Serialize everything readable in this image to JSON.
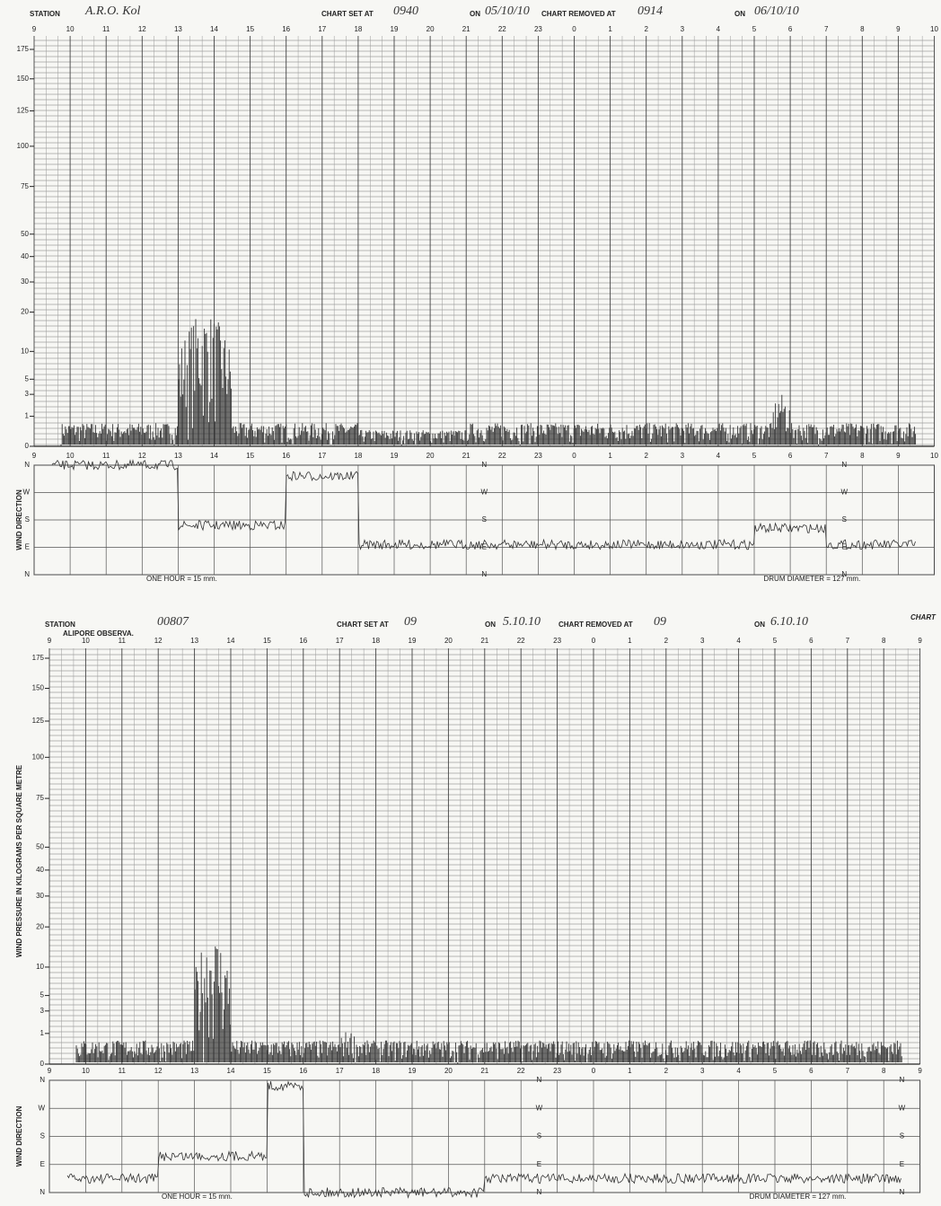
{
  "charts": [
    {
      "header": {
        "station_label": "STATION",
        "station": "A.R.O. Kol",
        "set_label": "CHART SET AT",
        "set_time": "0940",
        "on_label": "ON",
        "set_date": "05/10/10",
        "removed_label": "CHART REMOVED AT",
        "removed_time": "0914",
        "removed_on_label": "ON",
        "removed_date": "06/10/10"
      },
      "hours": [
        "9",
        "10",
        "11",
        "12",
        "13",
        "14",
        "15",
        "16",
        "17",
        "18",
        "19",
        "20",
        "21",
        "22",
        "23",
        "0",
        "1",
        "2",
        "3",
        "4",
        "5",
        "6",
        "7",
        "8",
        "9",
        "10"
      ],
      "pressure_ticks": [
        175,
        150,
        125,
        100,
        75,
        50,
        40,
        30,
        20,
        10,
        5,
        3,
        1,
        0
      ],
      "direction_label": "WIND DIRECTION",
      "directions": [
        "N",
        "W",
        "S",
        "E",
        "N"
      ],
      "footer_left": "ONE HOUR = 15 mm.",
      "footer_right": "DRUM DIAMETER = 127 mm."
    },
    {
      "header": {
        "station_label": "STATION",
        "station": "00807",
        "station_sub": "ALIPORE OBSERVA.",
        "set_label": "CHART SET AT",
        "set_time": "09",
        "on_label": "ON",
        "set_date": "5.10.10",
        "removed_label": "CHART REMOVED AT",
        "removed_time": "09",
        "removed_on_label": "ON",
        "removed_date": "6.10.10",
        "corner": "CHART"
      },
      "hours": [
        "9",
        "10",
        "11",
        "12",
        "13",
        "14",
        "15",
        "16",
        "17",
        "18",
        "19",
        "20",
        "21",
        "22",
        "23",
        "0",
        "1",
        "2",
        "3",
        "4",
        "5",
        "6",
        "7",
        "8",
        "9"
      ],
      "pressure_ticks": [
        175,
        150,
        125,
        100,
        75,
        50,
        40,
        30,
        20,
        10,
        5,
        3,
        1,
        0
      ],
      "pressure_label": "WIND PRESSURE IN KILOGRAMS PER SQUARE METRE",
      "direction_label": "WIND DIRECTION",
      "directions": [
        "N",
        "W",
        "S",
        "E",
        "N"
      ],
      "footer_left": "ONE HOUR = 15 mm.",
      "footer_right": "DRUM DIAMETER = 127 mm."
    }
  ]
}
